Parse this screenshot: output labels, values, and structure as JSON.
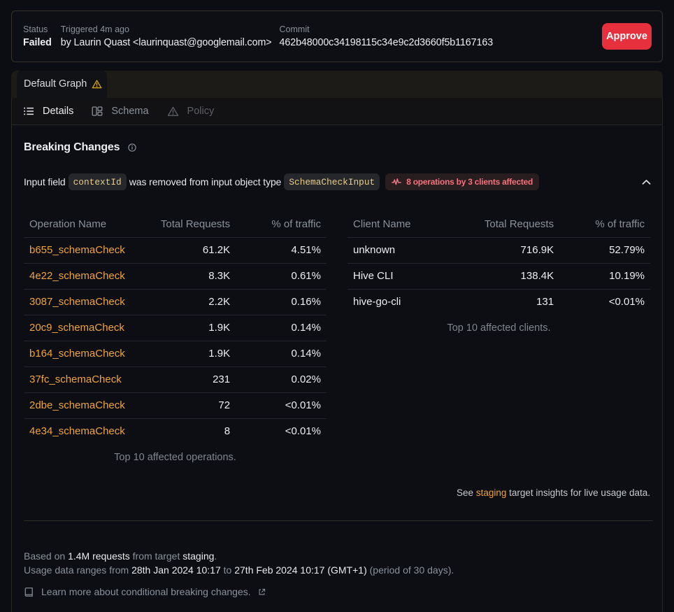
{
  "status_card": {
    "status_label": "Status",
    "status_value": "Failed",
    "triggered_label": "Triggered 4m ago",
    "triggered_value": "by Laurin Quast <laurinquast@googlemail.com>",
    "commit_label": "Commit",
    "commit_value": "462b48000c34198115c34e9c2d3660f5b1167163",
    "approve_label": "Approve"
  },
  "graph_tab": {
    "label": "Default Graph",
    "warning_icon": "warning-triangle"
  },
  "subnav": [
    {
      "label": "Details",
      "icon": "list-icon",
      "state": "active"
    },
    {
      "label": "Schema",
      "icon": "schema-icon",
      "state": "muted"
    },
    {
      "label": "Policy",
      "icon": "warning-icon",
      "state": "dim"
    }
  ],
  "breaking": {
    "title": "Breaking Changes",
    "info_icon": "info-circle",
    "change": {
      "prefix": "Input field",
      "code_field": "contextId",
      "middle": "was removed from input object type",
      "code_type": "SchemaCheckInput",
      "badge": "8 operations by 3 clients affected",
      "badge_icon": "pulse-icon",
      "collapse_icon": "chevron-up"
    }
  },
  "operations_table": {
    "headers": [
      "Operation Name",
      "Total Requests",
      "% of traffic"
    ],
    "rows": [
      [
        "b655_schemaCheck",
        "61.2K",
        "4.51%"
      ],
      [
        "4e22_schemaCheck",
        "8.3K",
        "0.61%"
      ],
      [
        "3087_schemaCheck",
        "2.2K",
        "0.16%"
      ],
      [
        "20c9_schemaCheck",
        "1.9K",
        "0.14%"
      ],
      [
        "b164_schemaCheck",
        "1.9K",
        "0.14%"
      ],
      [
        "37fc_schemaCheck",
        "231",
        "0.02%"
      ],
      [
        "2dbe_schemaCheck",
        "72",
        "<0.01%"
      ],
      [
        "4e34_schemaCheck",
        "8",
        "<0.01%"
      ]
    ],
    "footnote": "Top 10 affected operations."
  },
  "clients_table": {
    "headers": [
      "Client Name",
      "Total Requests",
      "% of traffic"
    ],
    "rows": [
      [
        "unknown",
        "716.9K",
        "52.79%"
      ],
      [
        "Hive CLI",
        "138.4K",
        "10.19%"
      ],
      [
        "hive-go-cli",
        "131",
        "<0.01%"
      ]
    ],
    "footnote": "Top 10 affected clients."
  },
  "see_insights": {
    "prefix": "See ",
    "link": "staging",
    "suffix": " target insights for live usage data."
  },
  "footer": {
    "line1_parts": [
      "Based on ",
      "1.4M requests",
      " from target ",
      "staging",
      "."
    ],
    "line2_parts": [
      "Usage data ranges from ",
      "28th Jan 2024 10:17",
      " to ",
      "27th Feb 2024 10:17 (GMT+1)",
      " (period of 30 days)."
    ],
    "learn_more": "Learn more about conditional breaking changes.",
    "book_icon": "book-icon",
    "external_icon": "external-link-icon"
  },
  "colors": {
    "page_bg": "#0b0d12",
    "panel_bg": "#0c0e14",
    "accent_orange": "#f0a43c",
    "code_gold": "#e9cf8d",
    "danger_red": "#e6303e",
    "badge_red": "#f3727c",
    "warning_amber": "#d9a514"
  }
}
